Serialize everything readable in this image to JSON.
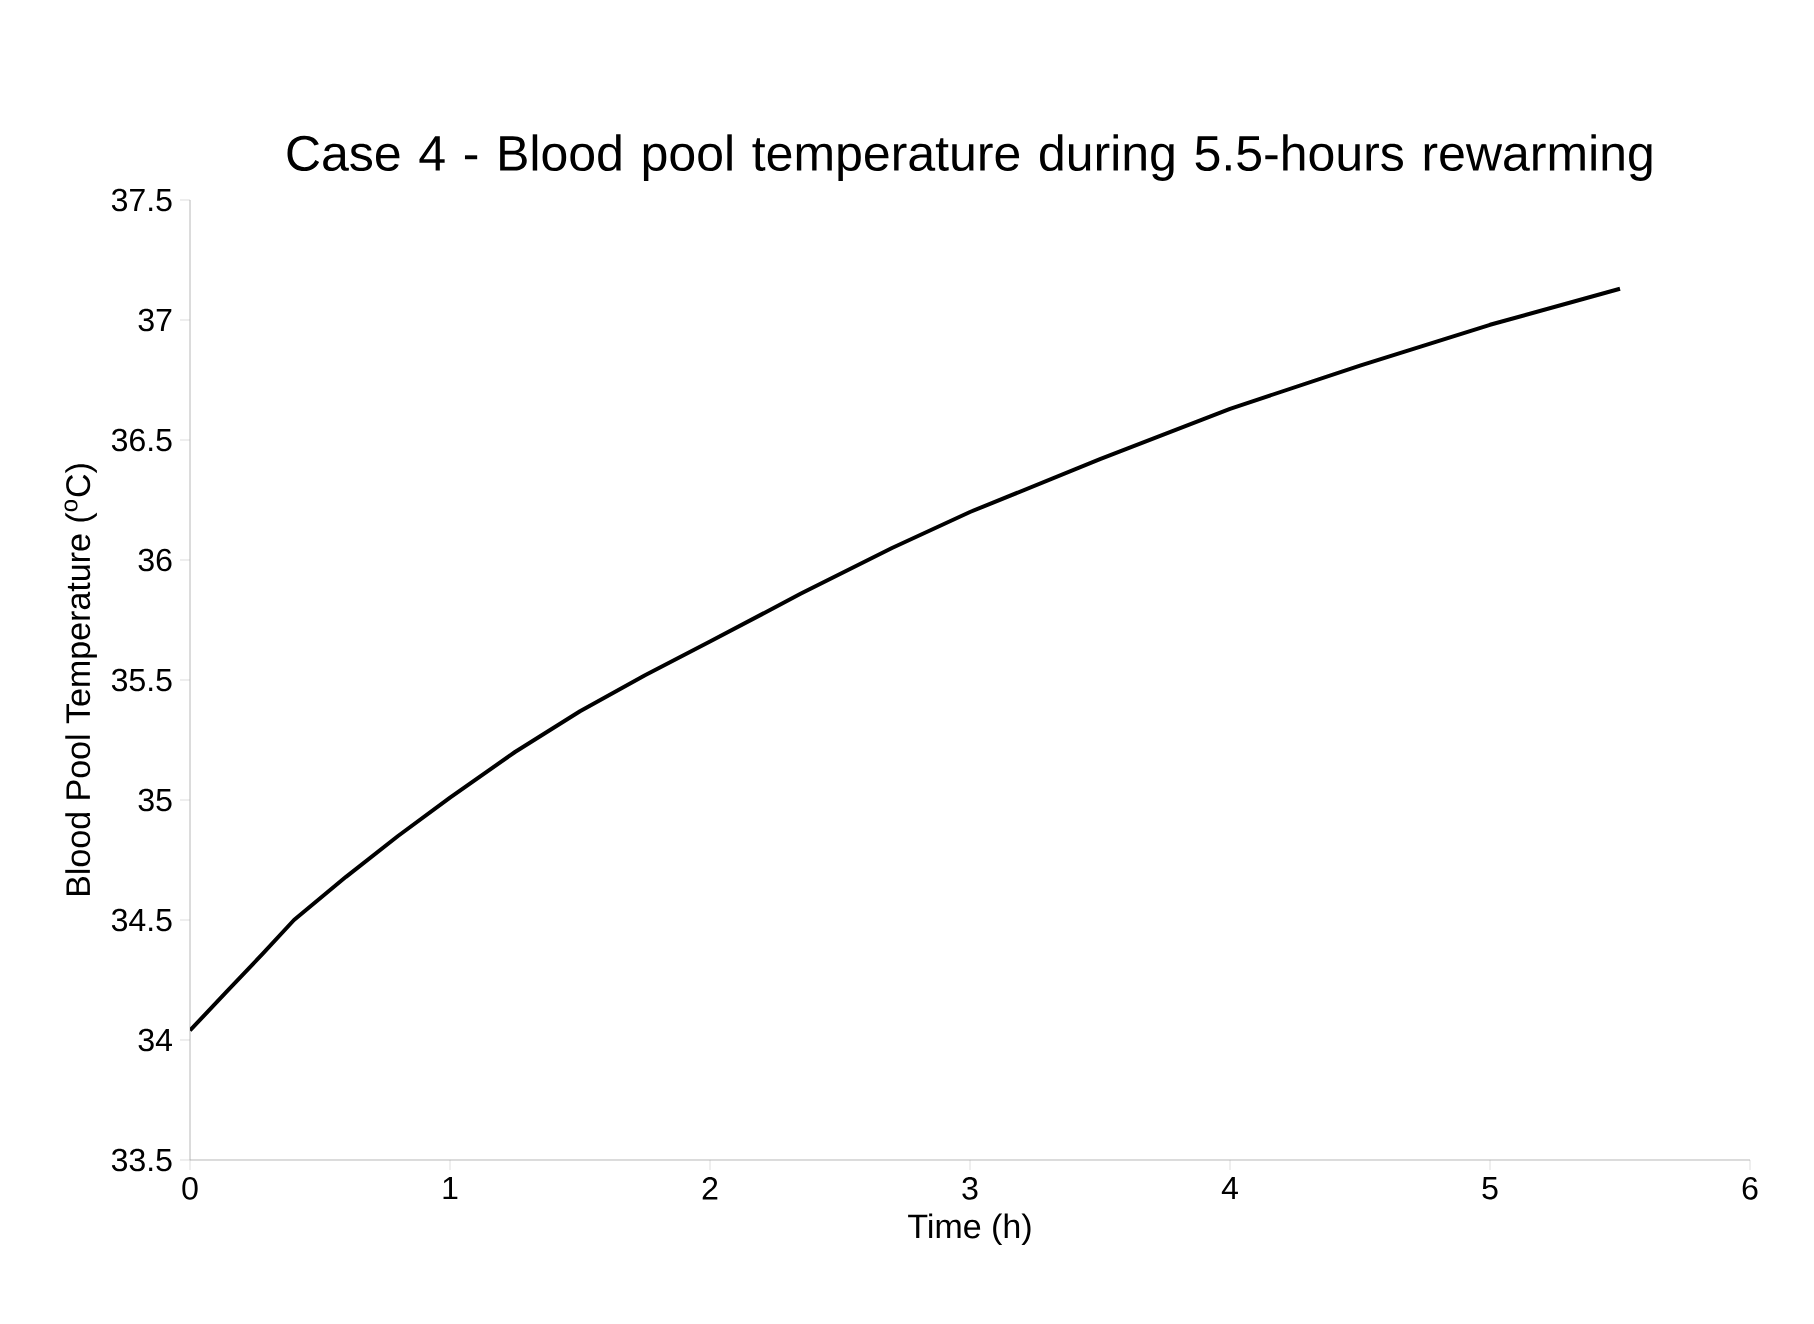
{
  "chart_data": {
    "type": "line",
    "title": "Case 4 - Blood pool temperature during  5.5-hours rewarming",
    "xlabel": "Time (h)",
    "ylabel": "Blood Pool Temperature ($^{o}$C)",
    "series": [
      {
        "color": "#000000",
        "x": [
          0,
          0.14,
          0.28,
          0.4,
          0.6,
          0.8,
          1.0,
          1.25,
          1.5,
          1.75,
          2.0,
          2.35,
          2.7,
          3.0,
          3.5,
          4.0,
          4.5,
          5.0,
          5.5
        ],
        "values": [
          34.04,
          34.2,
          34.36,
          34.5,
          34.68,
          34.85,
          35.01,
          35.2,
          35.37,
          35.52,
          35.66,
          35.86,
          36.05,
          36.2,
          36.42,
          36.63,
          36.81,
          36.98,
          37.13
        ]
      }
    ],
    "xlim": [
      0,
      6
    ],
    "ylim": [
      33.5,
      37.5
    ],
    "xticks": [
      0,
      1,
      2,
      3,
      4,
      5,
      6
    ],
    "yticks": [
      33.5,
      34,
      34.5,
      35,
      35.5,
      36,
      36.5,
      37,
      37.5
    ],
    "grid": false,
    "marker": "none",
    "line_style": "solid"
  }
}
